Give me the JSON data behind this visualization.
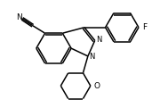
{
  "bg_color": "#ffffff",
  "line_color": "#000000",
  "line_width": 1.1,
  "font_size": 6.5,
  "figsize": [
    1.8,
    1.21
  ],
  "dpi": 100,
  "xlim": [
    0,
    180
  ],
  "ylim": [
    0,
    121
  ]
}
